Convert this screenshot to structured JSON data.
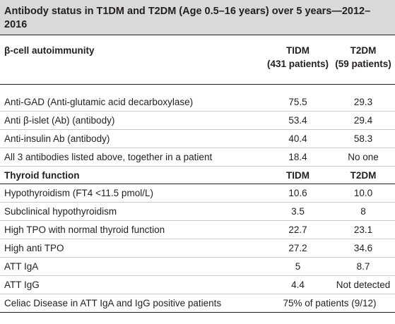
{
  "caption": "Antibody status in T1DM and T2DM (Age 0.5–16 years) over 5 years—2012–2016",
  "header": {
    "label": "β-cell autoimmunity",
    "col1_line1": "TIDM",
    "col1_line2": "(431 patients)",
    "col2_line1": "T2DM",
    "col2_line2": "(59 patients)"
  },
  "autoimmunity_rows": [
    {
      "label": "Anti-GAD (Anti-glutamic acid decarboxylase)",
      "t1dm": "75.5",
      "t2dm": "29.3"
    },
    {
      "label": "Anti β-islet (Ab) (antibody)",
      "t1dm": "53.4",
      "t2dm": "29.4"
    },
    {
      "label": "Anti-insulin Ab (antibody)",
      "t1dm": "40.4",
      "t2dm": "58.3"
    },
    {
      "label": "All 3 antibodies listed above, together in a patient",
      "t1dm": "18.4",
      "t2dm": "No one"
    }
  ],
  "thyroid_header": {
    "label": "Thyroid function",
    "col1": "TIDM",
    "col2": "T2DM"
  },
  "thyroid_rows": [
    {
      "label": "Hypothyroidism (FT4 <11.5 pmol/L)",
      "t1dm": "10.6",
      "t2dm": "10.0"
    },
    {
      "label": "Subclinical hypothyroidism",
      "t1dm": "3.5",
      "t2dm": "8"
    },
    {
      "label": "High TPO with normal thyroid function",
      "t1dm": "22.7",
      "t2dm": "23.1"
    },
    {
      "label": "High anti TPO",
      "t1dm": "27.2",
      "t2dm": "34.6"
    },
    {
      "label": "ATT IgA",
      "t1dm": "5",
      "t2dm": "8.7"
    },
    {
      "label": "ATT IgG",
      "t1dm": "4.4",
      "t2dm": "Not detected"
    }
  ],
  "celiac_row": {
    "label": "Celiac Disease in ATT IgA and IgG positive patients",
    "value": "75% of patients (9/12)"
  }
}
